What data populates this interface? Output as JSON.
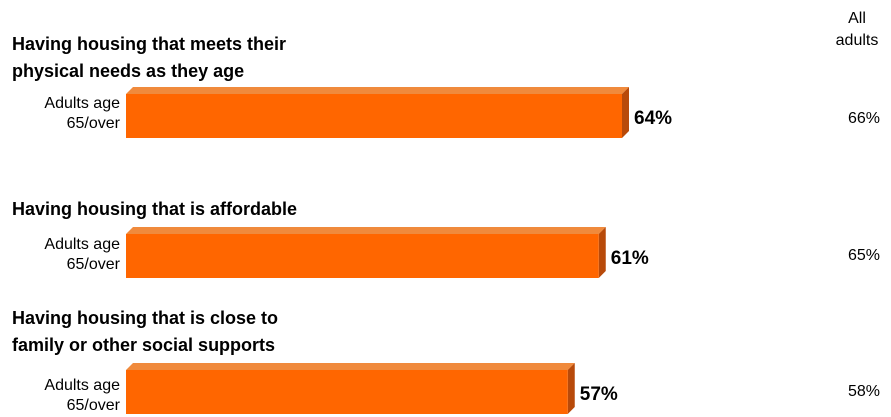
{
  "header": {
    "all_adults_line1": "All",
    "all_adults_line2": "adults"
  },
  "questions": [
    {
      "title_line1": "Having housing that meets their",
      "title_line2": "physical needs as they age",
      "category_line1": "Adults age",
      "category_line2": "65/over",
      "value_label": "64%",
      "all_adults_label": "66%"
    },
    {
      "title_line1": "Having housing that is affordable",
      "title_line2": "",
      "category_line1": "Adults age",
      "category_line2": "65/over",
      "value_label": "61%",
      "all_adults_label": "65%"
    },
    {
      "title_line1": "Having housing that is close to",
      "title_line2": "family or other social supports",
      "category_line1": "Adults age",
      "category_line2": "65/over",
      "value_label": "57%",
      "all_adults_label": "58%"
    }
  ],
  "colors": {
    "bar_front": "#ff6600",
    "bar_top": "#f08a3c",
    "bar_side": "#b84a0a"
  },
  "chart_data": {
    "type": "bar",
    "orientation": "horizontal",
    "categories": [
      "Having housing that meets their physical needs as they age",
      "Having housing that is affordable",
      "Having housing that is close to family or other social supports"
    ],
    "series": [
      {
        "name": "Adults age 65/over",
        "values": [
          64,
          61,
          57
        ]
      },
      {
        "name": "All adults",
        "values": [
          66,
          65,
          58
        ]
      }
    ],
    "xlim": [
      0,
      100
    ],
    "grid": false,
    "bar_style": "3d"
  }
}
